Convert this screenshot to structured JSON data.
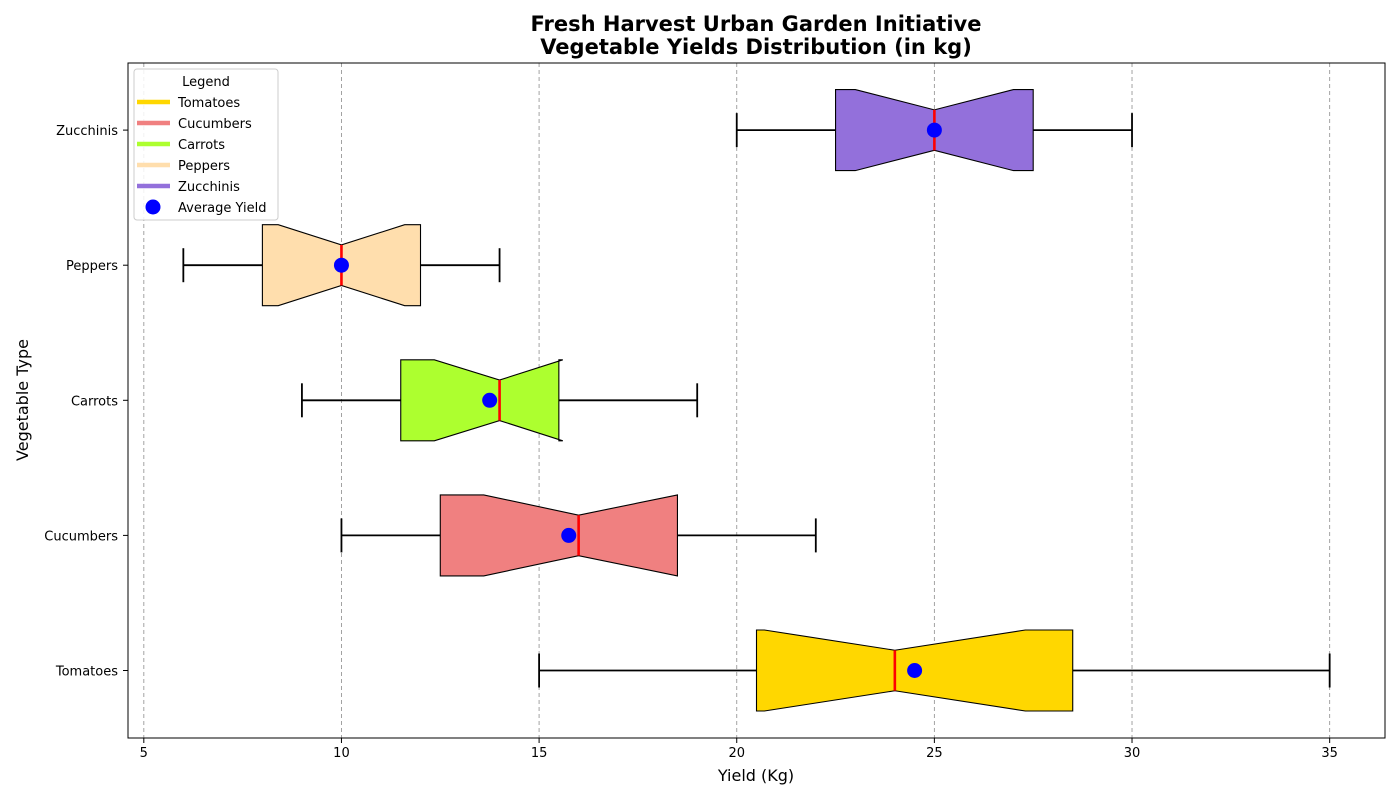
{
  "chart_data": {
    "type": "boxplot",
    "orientation": "horizontal",
    "title": "Fresh Harvest Urban Garden Initiative\nVegetable Yields Distribution (in kg)",
    "xlabel": "Yield (Kg)",
    "ylabel": "Vegetable Type",
    "xlim": [
      4.6,
      36.4
    ],
    "xticks": [
      5,
      10,
      15,
      20,
      25,
      30,
      35
    ],
    "grid": "x-dashed",
    "notched": true,
    "categories": [
      "Tomatoes",
      "Cucumbers",
      "Carrots",
      "Peppers",
      "Zucchinis"
    ],
    "series": [
      {
        "name": "Tomatoes",
        "min": 15,
        "q1": 20.5,
        "median": 24,
        "q3": 28.5,
        "max": 35,
        "mean": 24.5,
        "notch_low": 20.7,
        "notch_high": 27.3,
        "color": "#FFD700"
      },
      {
        "name": "Cucumbers",
        "min": 10,
        "q1": 12.5,
        "median": 16,
        "q3": 18.5,
        "max": 22,
        "mean": 15.75,
        "notch_low": 13.6,
        "notch_high": 18.5,
        "color": "#F08080"
      },
      {
        "name": "Carrots",
        "min": 9,
        "q1": 11.5,
        "median": 14,
        "q3": 15.5,
        "max": 19,
        "mean": 13.75,
        "notch_low": 12.35,
        "notch_high": 15.6,
        "color": "#ADFF2F"
      },
      {
        "name": "Peppers",
        "min": 6,
        "q1": 8,
        "median": 10,
        "q3": 12,
        "max": 14,
        "mean": 10,
        "notch_low": 8.4,
        "notch_high": 11.6,
        "color": "#FFDEAD"
      },
      {
        "name": "Zucchinis",
        "min": 20,
        "q1": 22.5,
        "median": 25,
        "q3": 27.5,
        "max": 30,
        "mean": 25,
        "notch_low": 23,
        "notch_high": 27,
        "color": "#9370DB"
      }
    ],
    "median_color": "#FF0000",
    "mean_marker_color": "#0000FF",
    "legend": {
      "title": "Legend",
      "position": "top-left",
      "entries": [
        "Tomatoes",
        "Cucumbers",
        "Carrots",
        "Peppers",
        "Zucchinis",
        "Average Yield"
      ]
    }
  }
}
